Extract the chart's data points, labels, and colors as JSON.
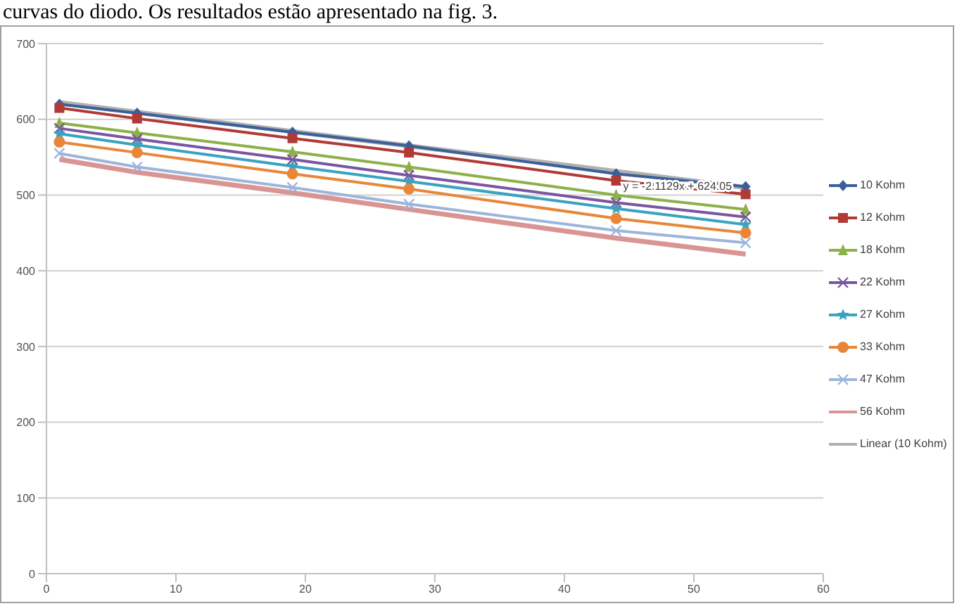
{
  "chart_data": {
    "type": "line",
    "annotations": [
      "curvas do diodo. Os resultados estão apresentado na fig. 3.",
      {
        "text": "y = -2.1129x + 624.05",
        "x": 44,
        "y": 512
      }
    ],
    "x": [
      1,
      7,
      19,
      28,
      44,
      54
    ],
    "xlim": [
      0,
      60
    ],
    "xticks": [
      0,
      10,
      20,
      30,
      40,
      50,
      60
    ],
    "ylim": [
      0,
      700
    ],
    "yticks": [
      0,
      100,
      200,
      300,
      400,
      500,
      600,
      700
    ],
    "grid": "y",
    "legend": "right",
    "line_style": "solid",
    "series": [
      {
        "name": "10 Kohm",
        "color": "#3a5f9a",
        "marker": "diamond",
        "values": [
          620,
          608,
          583,
          565,
          528,
          511
        ]
      },
      {
        "name": "12 Kohm",
        "color": "#b03a36",
        "marker": "square",
        "values": [
          615,
          601,
          575,
          556,
          519,
          501
        ]
      },
      {
        "name": "18 Kohm",
        "color": "#8db04a",
        "marker": "triangle",
        "values": [
          595,
          582,
          557,
          537,
          500,
          481
        ]
      },
      {
        "name": "22 Kohm",
        "color": "#7a56a0",
        "marker": "cross",
        "values": [
          588,
          574,
          547,
          526,
          490,
          471
        ]
      },
      {
        "name": "27 Kohm",
        "color": "#3aa3c0",
        "marker": "star",
        "values": [
          581,
          566,
          538,
          518,
          482,
          461
        ]
      },
      {
        "name": "33 Kohm",
        "color": "#e8873a",
        "marker": "circle",
        "values": [
          570,
          556,
          528,
          508,
          469,
          450
        ]
      },
      {
        "name": "47 Kohm",
        "color": "#9db5dc",
        "marker": "cross",
        "values": [
          555,
          537,
          510,
          488,
          453,
          437
        ]
      },
      {
        "name": "56 Kohm",
        "color": "#d99594",
        "marker": "none",
        "values": [
          547,
          530,
          503,
          481,
          443,
          422
        ]
      },
      {
        "name": "Linear (10 Kohm)",
        "color": "#b0b0b0",
        "marker": "none",
        "x": [
          1,
          54
        ],
        "values": [
          622,
          510
        ]
      }
    ]
  }
}
